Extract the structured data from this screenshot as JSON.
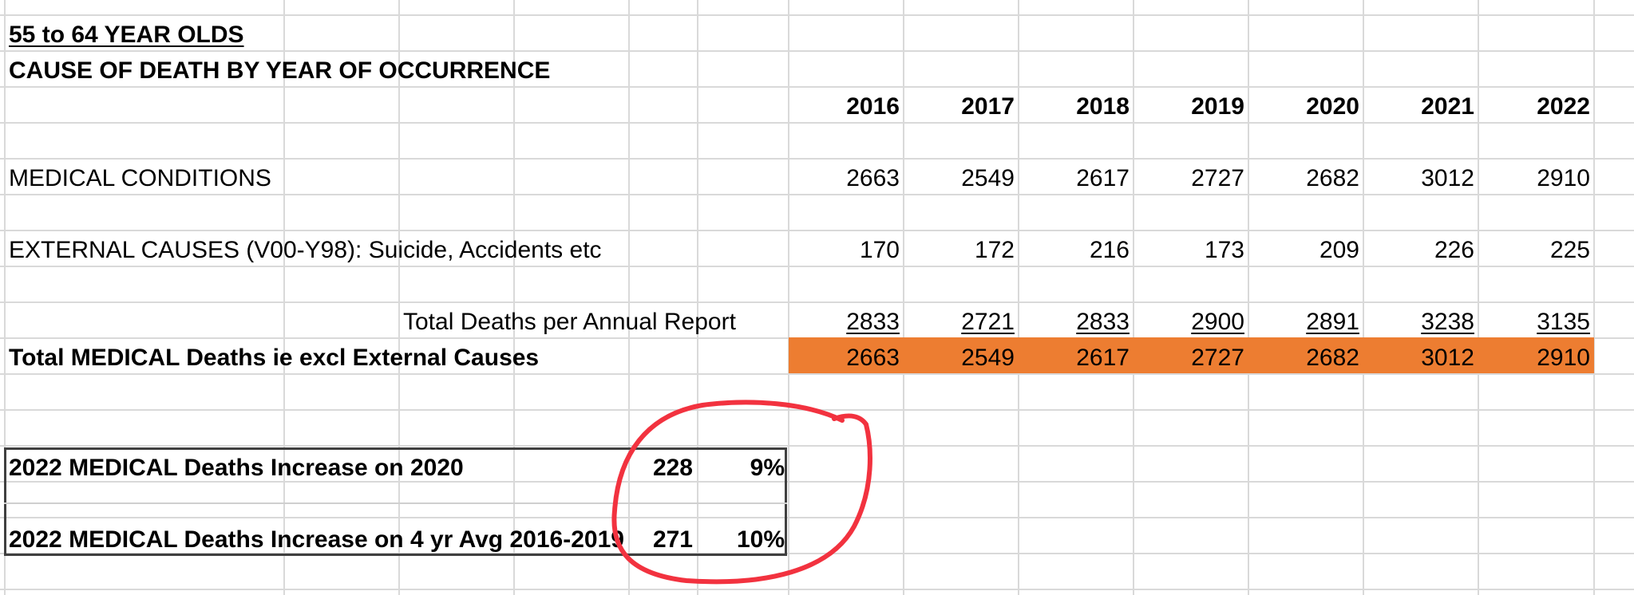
{
  "sheet": {
    "title_age_group": "55 to 64 YEAR OLDS",
    "title_heading": "CAUSE OF DEATH BY YEAR OF OCCURRENCE",
    "years": [
      "2016",
      "2017",
      "2018",
      "2019",
      "2020",
      "2021",
      "2022"
    ],
    "rows": {
      "medical_conditions": {
        "label": "MEDICAL CONDITIONS",
        "values": [
          "2663",
          "2549",
          "2617",
          "2727",
          "2682",
          "3012",
          "2910"
        ]
      },
      "external_causes": {
        "label": "EXTERNAL CAUSES (V00-Y98): Suicide, Accidents etc",
        "values": [
          "170",
          "172",
          "216",
          "173",
          "209",
          "226",
          "225"
        ]
      },
      "total_annual": {
        "label": "Total Deaths per Annual Report",
        "values": [
          "2833",
          "2721",
          "2833",
          "2900",
          "2891",
          "3238",
          "3135"
        ]
      },
      "total_medical": {
        "label": "Total MEDICAL Deaths ie excl External Causes",
        "values": [
          "2663",
          "2549",
          "2617",
          "2727",
          "2682",
          "3012",
          "2910"
        ]
      }
    },
    "summary": {
      "row1": {
        "label": "2022 MEDICAL Deaths Increase on 2020",
        "value": "228",
        "percent": "9%"
      },
      "row2": {
        "label": "2022 MEDICAL Deaths Increase on 4 yr Avg 2016-2019",
        "value": "271",
        "percent": "10%"
      }
    }
  },
  "colors": {
    "gridline": "#d9d9d9",
    "highlight_fill": "#ed7d31",
    "annotation_circle": "#f2323f",
    "summary_border": "#404040"
  }
}
